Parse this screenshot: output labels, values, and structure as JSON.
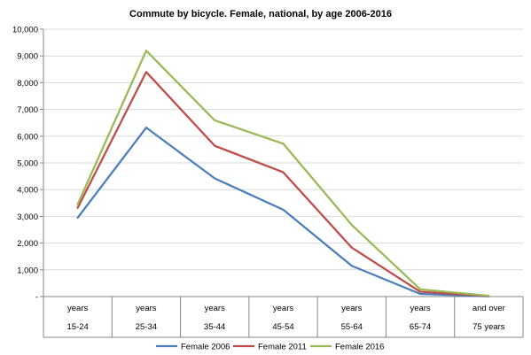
{
  "chart_data": {
    "type": "line",
    "title": "Commute by bicycle. Female, national, by age 2006-2016",
    "xlabel": "",
    "ylabel": "",
    "ylim": [
      0,
      10000
    ],
    "y_ticks": [
      "-",
      "1,000",
      "2,000",
      "3,000",
      "4,000",
      "5,000",
      "6,000",
      "7,000",
      "8,000",
      "9,000",
      "10,000"
    ],
    "categories": [
      {
        "line1": "years",
        "line2": "15-24"
      },
      {
        "line1": "years",
        "line2": "25-34"
      },
      {
        "line1": "years",
        "line2": "35-44"
      },
      {
        "line1": "years",
        "line2": "45-54"
      },
      {
        "line1": "years",
        "line2": "55-64"
      },
      {
        "line1": "years",
        "line2": "65-74"
      },
      {
        "line1": "and over",
        "line2": "75 years"
      }
    ],
    "series": [
      {
        "name": "Female 2006",
        "color": "#4a7ebb",
        "values": [
          2950,
          6320,
          4420,
          3250,
          1150,
          100,
          10
        ]
      },
      {
        "name": "Female 2011",
        "color": "#be4b48",
        "values": [
          3320,
          8400,
          5640,
          4650,
          1830,
          180,
          20
        ]
      },
      {
        "name": "Female 2016",
        "color": "#98b954",
        "values": [
          3450,
          9200,
          6590,
          5720,
          2680,
          270,
          30
        ]
      }
    ],
    "grid": true,
    "legend": "bottom"
  }
}
